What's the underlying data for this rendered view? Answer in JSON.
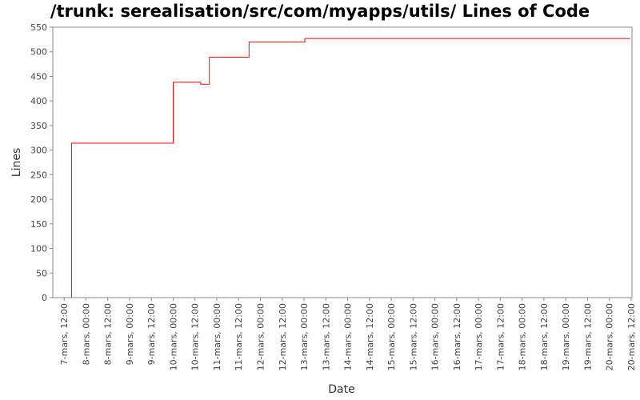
{
  "chart_data": {
    "type": "line",
    "title": "/trunk: serealisation/src/com/myapps/utils/ Lines of Code",
    "xlabel": "Date",
    "ylabel": "Lines",
    "ylim": [
      0,
      550
    ],
    "xlim": [
      -0.26,
      13.02
    ],
    "y_ticks": [
      0,
      50,
      100,
      150,
      200,
      250,
      300,
      350,
      400,
      450,
      500,
      550
    ],
    "x_ticks": [
      {
        "label": "7-mars, 12:00",
        "pos": 0
      },
      {
        "label": "8-mars, 00:00",
        "pos": 0.5
      },
      {
        "label": "8-mars, 12:00",
        "pos": 1
      },
      {
        "label": "9-mars, 00:00",
        "pos": 1.5
      },
      {
        "label": "9-mars, 12:00",
        "pos": 2
      },
      {
        "label": "10-mars, 00:00",
        "pos": 2.5
      },
      {
        "label": "10-mars, 12:00",
        "pos": 3
      },
      {
        "label": "11-mars, 00:00",
        "pos": 3.5
      },
      {
        "label": "11-mars, 12:00",
        "pos": 4
      },
      {
        "label": "12-mars, 00:00",
        "pos": 4.5
      },
      {
        "label": "12-mars, 12:00",
        "pos": 5
      },
      {
        "label": "13-mars, 00:00",
        "pos": 5.5
      },
      {
        "label": "13-mars, 12:00",
        "pos": 6
      },
      {
        "label": "14-mars, 00:00",
        "pos": 6.5
      },
      {
        "label": "14-mars, 12:00",
        "pos": 7
      },
      {
        "label": "15-mars, 00:00",
        "pos": 7.5
      },
      {
        "label": "15-mars, 12:00",
        "pos": 8
      },
      {
        "label": "16-mars, 00:00",
        "pos": 8.5
      },
      {
        "label": "16-mars, 12:00",
        "pos": 9
      },
      {
        "label": "17-mars, 00:00",
        "pos": 9.5
      },
      {
        "label": "17-mars, 12:00",
        "pos": 10
      },
      {
        "label": "18-mars, 00:00",
        "pos": 10.5
      },
      {
        "label": "18-mars, 12:00",
        "pos": 11
      },
      {
        "label": "19-mars, 00:00",
        "pos": 11.5
      },
      {
        "label": "19-mars, 12:00",
        "pos": 12
      },
      {
        "label": "20-mars, 00:00",
        "pos": 12.5
      },
      {
        "label": "20-mars, 12:00",
        "pos": 13
      }
    ],
    "x_unit": "days after 7-mars 12:00",
    "series": [
      {
        "name": "Lines",
        "color": "#ff0000",
        "step": true,
        "points": [
          {
            "x": 0.17,
            "y": 0
          },
          {
            "x": 0.17,
            "y": 314
          },
          {
            "x": 2.5,
            "y": 438
          },
          {
            "x": 3.13,
            "y": 434
          },
          {
            "x": 3.33,
            "y": 489
          },
          {
            "x": 4.24,
            "y": 520
          },
          {
            "x": 5.52,
            "y": 527
          },
          {
            "x": 12.98,
            "y": 527
          }
        ]
      }
    ]
  },
  "colors": {
    "series": "#ff0000",
    "axis": "#888888",
    "plot_border": "#888888",
    "background": "#ffffff"
  }
}
